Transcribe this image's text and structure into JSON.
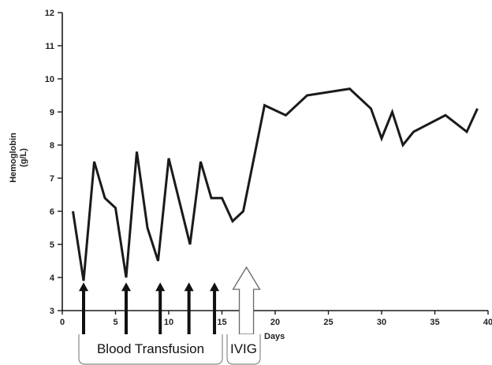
{
  "chart_data": {
    "type": "line",
    "xlabel": "Days",
    "ylabel_line1": "Hemoglobin",
    "ylabel_line2": "(g/L)",
    "xlim": [
      0,
      40
    ],
    "ylim": [
      3,
      12
    ],
    "xticks": [
      0,
      5,
      10,
      15,
      20,
      25,
      30,
      35,
      40
    ],
    "yticks": [
      3,
      4,
      5,
      6,
      7,
      8,
      9,
      10,
      11,
      12
    ],
    "grid": false,
    "series": [
      {
        "x": [
          1,
          2,
          3,
          4,
          5,
          6,
          7,
          8,
          9,
          10,
          11,
          12,
          13,
          14,
          15,
          16,
          17,
          18,
          19,
          21,
          23,
          27,
          29,
          30,
          31,
          32,
          33,
          36,
          38,
          39
        ],
        "values": [
          6.0,
          3.9,
          7.5,
          6.4,
          6.1,
          4.0,
          7.8,
          5.5,
          4.5,
          7.6,
          6.3,
          5.0,
          7.5,
          6.4,
          6.4,
          5.7,
          6.0,
          7.6,
          9.2,
          8.9,
          9.5,
          9.7,
          9.1,
          8.2,
          9.0,
          8.0,
          8.4,
          8.9,
          8.4,
          9.1
        ]
      }
    ],
    "annotations": {
      "transfusion_days": [
        2,
        6,
        9.2,
        11.9,
        14.3
      ],
      "ivig_day": 17.3,
      "transfusion_label": "Blood Transfusion",
      "ivig_label": "IVIG"
    }
  }
}
